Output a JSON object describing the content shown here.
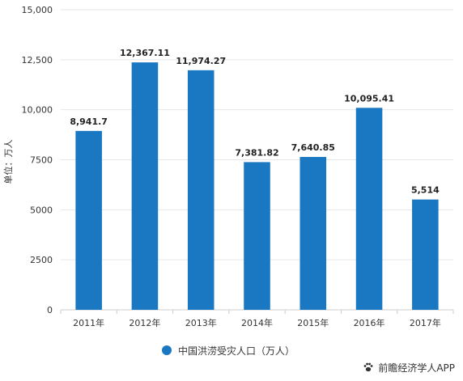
{
  "chart_data": {
    "type": "bar",
    "title": "",
    "xlabel": "",
    "ylabel": "单位：万人",
    "ylim": [
      0,
      15000
    ],
    "yticks": [
      "0",
      "2500",
      "5000",
      "7500",
      "10,000",
      "12,500",
      "15,000"
    ],
    "ytick_values": [
      0,
      2500,
      5000,
      7500,
      10000,
      12500,
      15000
    ],
    "categories": [
      "2011年",
      "2012年",
      "2013年",
      "2014年",
      "2015年",
      "2016年",
      "2017年"
    ],
    "series": [
      {
        "name": "中国洪涝受灾人口（万人）",
        "values": [
          8941.7,
          12367.11,
          11974.27,
          7381.82,
          7640.85,
          10095.41,
          5514
        ],
        "labels": [
          "8,941.7",
          "12,367.11",
          "11,974.27",
          "7,381.82",
          "7,640.85",
          "10,095.41",
          "5,514"
        ],
        "color": "#1a78c2"
      }
    ],
    "grid": true,
    "legend": "bottom"
  },
  "footer": {
    "source": "前瞻经济学人APP",
    "icon": "paw-icon"
  },
  "colors": {
    "bar": "#1a78c2",
    "grid": "#e6e6e6",
    "axis_text": "#333333"
  }
}
